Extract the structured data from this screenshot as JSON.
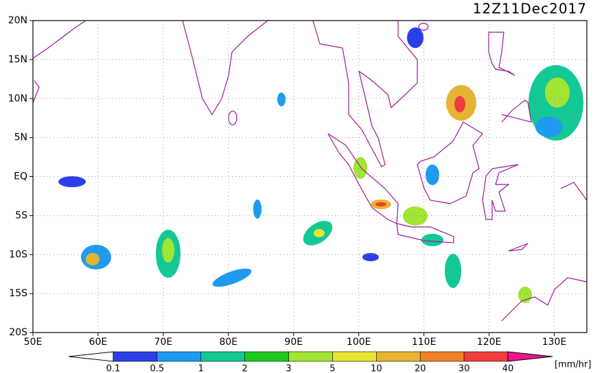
{
  "chart_data": {
    "type": "map",
    "title": "12Z11Dec2017",
    "xlim": [
      50,
      135
    ],
    "ylim": [
      -20,
      20
    ],
    "xticks": [
      {
        "value": 50,
        "label": "50E"
      },
      {
        "value": 60,
        "label": "60E"
      },
      {
        "value": 70,
        "label": "70E"
      },
      {
        "value": 80,
        "label": "80E"
      },
      {
        "value": 90,
        "label": "90E"
      },
      {
        "value": 100,
        "label": "100E"
      },
      {
        "value": 110,
        "label": "110E"
      },
      {
        "value": 120,
        "label": "120E"
      },
      {
        "value": 130,
        "label": "130E"
      }
    ],
    "yticks": [
      {
        "value": 20,
        "label": "20N"
      },
      {
        "value": 15,
        "label": "15N"
      },
      {
        "value": 10,
        "label": "10N"
      },
      {
        "value": 5,
        "label": "5N"
      },
      {
        "value": 0,
        "label": "EQ"
      },
      {
        "value": -5,
        "label": "5S"
      },
      {
        "value": -10,
        "label": "10S"
      },
      {
        "value": -15,
        "label": "15S"
      },
      {
        "value": -20,
        "label": "20S"
      }
    ],
    "grid": true,
    "colorbar": {
      "levels": [
        0.1,
        0.5,
        1,
        2,
        3,
        5,
        10,
        20,
        30,
        40
      ],
      "colors": [
        "#2b3fe8",
        "#1e9bf0",
        "#14c896",
        "#1ec81e",
        "#a0e632",
        "#e6e632",
        "#e6b432",
        "#f08228",
        "#f03c3c",
        "#f0148c"
      ],
      "unit": "[mm/hr]"
    }
  }
}
